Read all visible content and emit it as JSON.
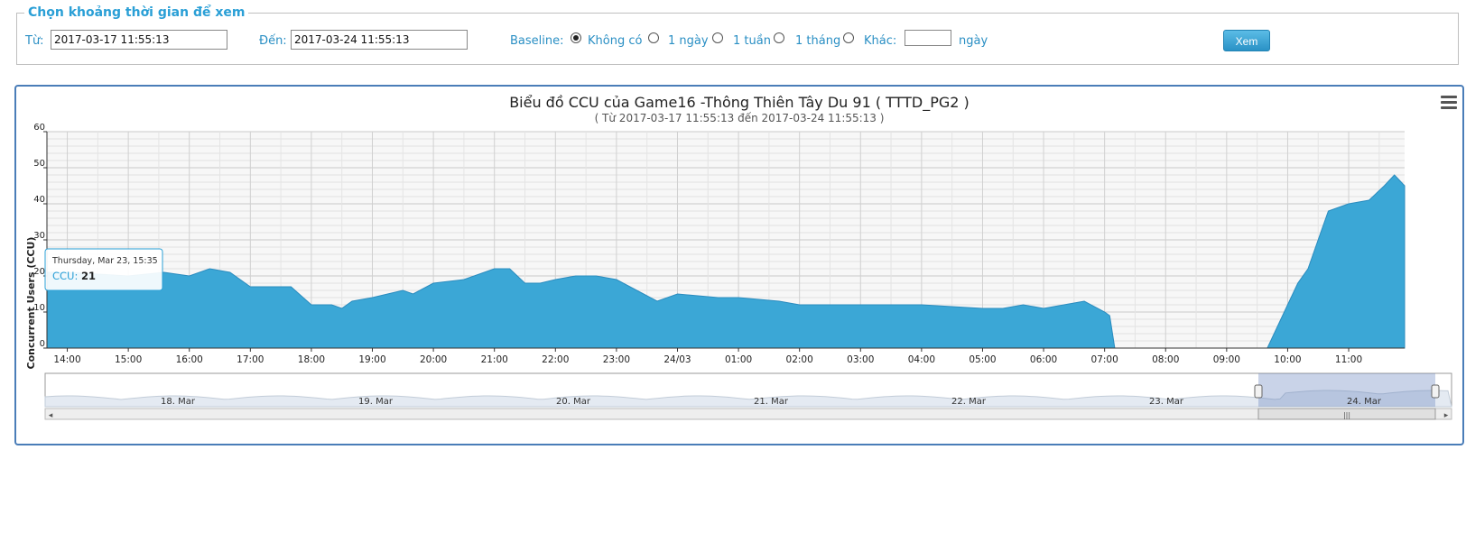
{
  "form": {
    "legend": "Chọn khoảng thời gian để xem",
    "from_label": "Từ:",
    "from_value": "2017-03-17 11:55:13",
    "to_label": "Đến:",
    "to_value": "2017-03-24 11:55:13",
    "baseline_label": "Baseline:",
    "baseline_options": [
      "Không có",
      "1 ngày",
      "1 tuần",
      "1 tháng",
      "Khác:"
    ],
    "baseline_selected": "Không có",
    "custom_days_value": "",
    "days_unit": "ngày",
    "submit_label": "Xem"
  },
  "menu_icon": "hamburger-menu-icon",
  "tooltip": {
    "date": "Thursday, Mar 23, 15:35",
    "series": "CCU",
    "value": "21"
  },
  "colors": {
    "area": "#3ba7d6",
    "accent": "#2a9fd6",
    "frame": "#4a7db8"
  },
  "chart_data": {
    "type": "area",
    "title": "Biểu đồ CCU của Game16 -Thông Thiên Tây Du 91 ( TTTD_PG2 )",
    "subtitle": "( Từ 2017-03-17 11:55:13 đến 2017-03-24 11:55:13 )",
    "ylabel": "Concurrent Users (CCU)",
    "ylim": [
      0,
      60
    ],
    "yticks": [
      0,
      10,
      20,
      30,
      40,
      50,
      60
    ],
    "xlim": [
      "2017-03-23 13:40",
      "2017-03-24 11:55"
    ],
    "xtick_labels": [
      "14:00",
      "15:00",
      "16:00",
      "17:00",
      "18:00",
      "19:00",
      "20:00",
      "21:00",
      "22:00",
      "23:00",
      "24/03",
      "01:00",
      "02:00",
      "03:00",
      "04:00",
      "05:00",
      "06:00",
      "07:00",
      "08:00",
      "09:00",
      "10:00",
      "11:00"
    ],
    "grid": true,
    "series": [
      {
        "name": "CCU",
        "x": [
          "2017-03-23 13:40",
          "2017-03-23 14:00",
          "2017-03-23 15:00",
          "2017-03-23 15:35",
          "2017-03-23 16:00",
          "2017-03-23 16:20",
          "2017-03-23 16:40",
          "2017-03-23 17:00",
          "17:30",
          "2017-03-23 17:40",
          "2017-03-23 18:00",
          "2017-03-23 18:20",
          "2017-03-23 18:30",
          "2017-03-23 18:40",
          "2017-03-23 19:00",
          "2017-03-23 19:30",
          "2017-03-23 19:40",
          "2017-03-23 20:00",
          "2017-03-23 20:30",
          "2017-03-23 21:00",
          "2017-03-23 21:15",
          "2017-03-23 21:30",
          "2017-03-23 21:45",
          "2017-03-23 22:00",
          "2017-03-23 22:20",
          "2017-03-23 22:40",
          "2017-03-23 23:00",
          "2017-03-23 23:20",
          "2017-03-23 23:40",
          "2017-03-24 00:00",
          "2017-03-24 00:40",
          "2017-03-24 01:00",
          "2017-03-24 01:40",
          "2017-03-24 02:00",
          "2017-03-24 03:00",
          "2017-03-24 04:00",
          "2017-03-24 05:00",
          "2017-03-24 05:20",
          "2017-03-24 05:40",
          "2017-03-24 06:00",
          "2017-03-24 06:20",
          "2017-03-24 06:40",
          "2017-03-24 07:00",
          "2017-03-24 07:05",
          "2017-03-24 07:10",
          "2017-03-24 08:00",
          "2017-03-24 09:00",
          "2017-03-24 09:40",
          "2017-03-24 10:00",
          "2017-03-24 10:10",
          "2017-03-24 10:20",
          "2017-03-24 10:30",
          "2017-03-24 10:40",
          "2017-03-24 11:00",
          "2017-03-24 11:20",
          "2017-03-24 11:35",
          "2017-03-24 11:45",
          "2017-03-24 11:55"
        ],
        "values": [
          21,
          21,
          20,
          21,
          20,
          22,
          21,
          17,
          17,
          17,
          12,
          12,
          11,
          13,
          14,
          16,
          15,
          18,
          19,
          22,
          22,
          18,
          18,
          19,
          20,
          20,
          19,
          16,
          13,
          15,
          14,
          14,
          13,
          12,
          12,
          12,
          11,
          11,
          12,
          11,
          12,
          13,
          10,
          9,
          0,
          0,
          0,
          0,
          12,
          18,
          22,
          30,
          38,
          40,
          41,
          45,
          48,
          45
        ]
      }
    ]
  }
}
